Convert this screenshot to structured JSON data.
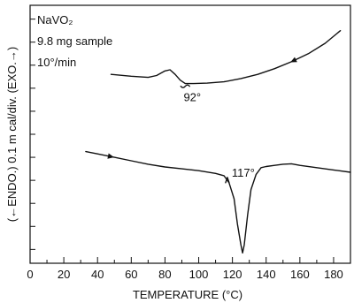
{
  "chart_data": {
    "type": "line",
    "title_lines": [
      "NaVO₂",
      "9.8 mg sample",
      "10°/min"
    ],
    "xlabel": "TEMPERATURE (°C)",
    "ylabel": "(←ENDO.)   0.1 m cal/div.  (EXO.→)",
    "xlim": [
      0,
      190
    ],
    "xticks": [
      0,
      20,
      40,
      60,
      80,
      100,
      120,
      140,
      160,
      180
    ],
    "grid": false,
    "series": [
      {
        "direction": "cooling",
        "x": [
          48,
          60,
          70,
          75,
          80,
          83,
          86,
          89,
          92,
          97,
          105,
          115,
          125,
          135,
          145,
          155,
          165,
          175,
          184
        ],
        "y": [
          2.6,
          2.52,
          2.47,
          2.55,
          2.75,
          2.8,
          2.6,
          2.35,
          2.2,
          2.2,
          2.22,
          2.28,
          2.42,
          2.6,
          2.85,
          3.15,
          3.5,
          3.95,
          4.5
        ]
      },
      {
        "direction": "heating",
        "x": [
          33,
          40,
          50,
          60,
          70,
          80,
          90,
          100,
          110,
          115,
          118,
          121,
          123,
          125,
          126,
          127,
          129,
          131,
          134,
          137,
          140,
          145,
          150,
          155,
          160,
          170,
          180,
          190
        ],
        "y": [
          -0.75,
          -0.85,
          -1.0,
          -1.15,
          -1.3,
          -1.42,
          -1.5,
          -1.58,
          -1.7,
          -1.8,
          -2.1,
          -2.8,
          -3.9,
          -4.8,
          -5.15,
          -4.8,
          -3.5,
          -2.4,
          -1.75,
          -1.45,
          -1.4,
          -1.35,
          -1.3,
          -1.28,
          -1.35,
          -1.45,
          -1.55,
          -1.65
        ]
      }
    ],
    "annotations": [
      {
        "text": "92°",
        "x": 92,
        "y": 2.2
      },
      {
        "text": "117°",
        "x": 117,
        "y": -1.95
      }
    ],
    "ylim": [
      -5.6,
      5.6
    ]
  }
}
